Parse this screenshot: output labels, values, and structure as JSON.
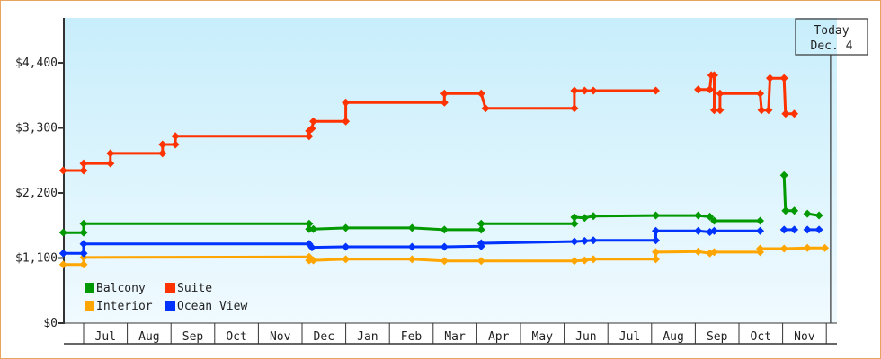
{
  "chart_data": {
    "type": "line",
    "title": "",
    "xlabel": "",
    "ylabel": "",
    "ylim": [
      0,
      5150
    ],
    "y_ticks": [
      {
        "value": 0,
        "label": "$0"
      },
      {
        "value": 1100,
        "label": "$1,100"
      },
      {
        "value": 2200,
        "label": "$2,200"
      },
      {
        "value": 3300,
        "label": "$3,300"
      },
      {
        "value": 4400,
        "label": "$4,400"
      }
    ],
    "x_range": [
      "2023-06-17",
      "2024-12-08"
    ],
    "x_ticks": [
      "Jul",
      "Aug",
      "Sep",
      "Oct",
      "Nov",
      "Dec",
      "Jan",
      "Feb",
      "Mar",
      "Apr",
      "May",
      "Jun",
      "Jul",
      "Aug",
      "Sep",
      "Oct",
      "Nov"
    ],
    "x_tick_months": [
      "2023-07",
      "2023-08",
      "2023-09",
      "2023-10",
      "2023-11",
      "2023-12",
      "2024-01",
      "2024-02",
      "2024-03",
      "2024-04",
      "2024-05",
      "2024-06",
      "2024-07",
      "2024-08",
      "2024-09",
      "2024-10",
      "2024-11"
    ],
    "grid": false,
    "legend_position": "bottom-left",
    "today": {
      "label": "Today",
      "date_label": "Dec. 4",
      "date": "2024-12-04"
    },
    "series": [
      {
        "name": "Balcony",
        "color": "#009900",
        "segments": [
          [
            [
              "2023-06-17",
              1530
            ],
            [
              "2023-07-01",
              1530
            ],
            [
              "2023-07-01",
              1680
            ],
            [
              "2023-12-06",
              1680
            ],
            [
              "2023-12-06",
              1590
            ],
            [
              "2023-12-09",
              1590
            ],
            [
              "2024-01-01",
              1610
            ],
            [
              "2024-02-16",
              1610
            ],
            [
              "2024-03-09",
              1580
            ],
            [
              "2024-04-04",
              1580
            ],
            [
              "2024-04-04",
              1680
            ],
            [
              "2024-06-08",
              1680
            ],
            [
              "2024-06-08",
              1790
            ],
            [
              "2024-06-15",
              1780
            ],
            [
              "2024-06-21",
              1810
            ],
            [
              "2024-08-04",
              1820
            ],
            [
              "2024-09-03",
              1820
            ],
            [
              "2024-09-11",
              1800
            ],
            [
              "2024-09-14",
              1730
            ],
            [
              "2024-10-16",
              1730
            ]
          ],
          [
            [
              "2024-11-02",
              2500
            ],
            [
              "2024-11-03",
              1900
            ],
            [
              "2024-11-09",
              1900
            ]
          ],
          [
            [
              "2024-11-18",
              1850
            ],
            [
              "2024-11-26",
              1820
            ]
          ]
        ]
      },
      {
        "name": "Suite",
        "color": "#ff3300",
        "segments": [
          [
            [
              "2023-06-17",
              2580
            ],
            [
              "2023-07-01",
              2580
            ],
            [
              "2023-07-01",
              2700
            ],
            [
              "2023-07-20",
              2700
            ],
            [
              "2023-07-20",
              2870
            ],
            [
              "2023-08-26",
              2870
            ],
            [
              "2023-08-26",
              3020
            ],
            [
              "2023-09-04",
              3020
            ],
            [
              "2023-09-04",
              3160
            ],
            [
              "2023-12-06",
              3160
            ],
            [
              "2023-12-06",
              3250
            ],
            [
              "2023-12-08",
              3290
            ],
            [
              "2023-12-09",
              3410
            ],
            [
              "2024-01-01",
              3410
            ],
            [
              "2024-01-01",
              3730
            ],
            [
              "2024-03-09",
              3730
            ],
            [
              "2024-03-09",
              3880
            ],
            [
              "2024-04-04",
              3880
            ],
            [
              "2024-04-07",
              3630
            ],
            [
              "2024-06-08",
              3630
            ],
            [
              "2024-06-08",
              3930
            ],
            [
              "2024-06-15",
              3930
            ],
            [
              "2024-06-21",
              3930
            ],
            [
              "2024-08-04",
              3930
            ]
          ],
          [
            [
              "2024-09-03",
              3950
            ],
            [
              "2024-09-11",
              3950
            ],
            [
              "2024-09-12",
              4190
            ],
            [
              "2024-09-14",
              4190
            ],
            [
              "2024-09-14",
              3600
            ],
            [
              "2024-09-18",
              3600
            ],
            [
              "2024-09-18",
              3880
            ],
            [
              "2024-10-16",
              3880
            ],
            [
              "2024-10-17",
              3600
            ],
            [
              "2024-10-22",
              3600
            ],
            [
              "2024-10-23",
              4140
            ],
            [
              "2024-11-02",
              4140
            ],
            [
              "2024-11-03",
              3540
            ],
            [
              "2024-11-09",
              3540
            ]
          ]
        ]
      },
      {
        "name": "Interior",
        "color": "#ffa500",
        "segments": [
          [
            [
              "2023-06-17",
              990
            ],
            [
              "2023-07-01",
              990
            ],
            [
              "2023-07-01",
              1110
            ],
            [
              "2023-12-06",
              1120
            ],
            [
              "2023-12-06",
              1060
            ],
            [
              "2023-12-09",
              1060
            ],
            [
              "2024-01-01",
              1080
            ],
            [
              "2024-02-16",
              1080
            ],
            [
              "2024-03-09",
              1050
            ],
            [
              "2024-04-04",
              1050
            ],
            [
              "2024-06-08",
              1050
            ],
            [
              "2024-06-15",
              1060
            ],
            [
              "2024-06-21",
              1080
            ],
            [
              "2024-08-04",
              1080
            ],
            [
              "2024-08-04",
              1200
            ],
            [
              "2024-09-03",
              1210
            ],
            [
              "2024-09-11",
              1180
            ],
            [
              "2024-09-14",
              1200
            ],
            [
              "2024-10-16",
              1200
            ],
            [
              "2024-10-16",
              1260
            ],
            [
              "2024-11-02",
              1260
            ],
            [
              "2024-11-18",
              1270
            ],
            [
              "2024-11-30",
              1270
            ]
          ]
        ]
      },
      {
        "name": "Ocean View",
        "color": "#0033ff",
        "segments": [
          [
            [
              "2023-06-17",
              1180
            ],
            [
              "2023-07-01",
              1180
            ],
            [
              "2023-07-01",
              1340
            ],
            [
              "2023-12-06",
              1340
            ],
            [
              "2023-12-08",
              1280
            ],
            [
              "2024-01-01",
              1290
            ],
            [
              "2024-02-16",
              1290
            ],
            [
              "2024-03-09",
              1290
            ],
            [
              "2024-04-04",
              1300
            ],
            [
              "2024-04-04",
              1350
            ],
            [
              "2024-06-08",
              1380
            ],
            [
              "2024-06-15",
              1390
            ],
            [
              "2024-06-21",
              1400
            ],
            [
              "2024-08-04",
              1400
            ],
            [
              "2024-08-04",
              1560
            ],
            [
              "2024-09-03",
              1560
            ],
            [
              "2024-09-11",
              1540
            ],
            [
              "2024-09-14",
              1560
            ],
            [
              "2024-10-16",
              1560
            ]
          ],
          [
            [
              "2024-11-02",
              1580
            ],
            [
              "2024-11-09",
              1580
            ]
          ],
          [
            [
              "2024-11-18",
              1580
            ],
            [
              "2024-11-26",
              1580
            ]
          ]
        ]
      }
    ]
  }
}
